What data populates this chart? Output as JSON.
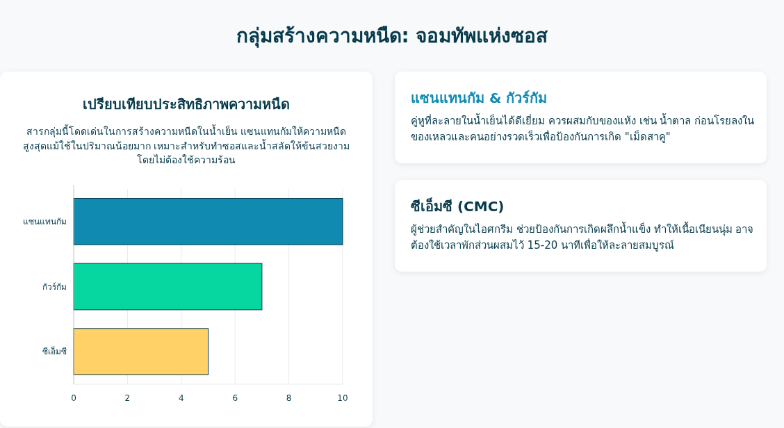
{
  "chart_data": [
    {
      "type": "bar",
      "orientation": "horizontal",
      "title": "เปรียบเทียบประสิทธิภาพความหนืด",
      "subtitle": "สารกลุ่มนี้โดดเด่นในการสร้างความหนืดในน้ำเย็น แซนแทนกัมให้ความหนืดสูงสุดแม้ใช้ในปริมาณน้อยมาก เหมาะสำหรับทำซอสและน้ำสลัดให้ข้นสวยงามโดยไม่ต้องใช้ความร้อน",
      "annotations": [
        "กลุ่มสร้างความหนืด: จอมทัพแห่งซอส"
      ],
      "categories": [
        "แซนแทนกัม",
        "กัวร์กัม",
        "ซีเอ็มซี"
      ],
      "values": [
        10,
        7,
        5
      ],
      "colors": [
        "#118ab2",
        "#06d6a0",
        "#ffd166"
      ],
      "xlim": [
        0,
        10
      ],
      "xticks": [
        0,
        2,
        4,
        6,
        8,
        10
      ],
      "grid": "x"
    },
    {
      "type": "other",
      "title": "แซนแทนกัม & กัวร์กัม",
      "subtitle": "คู่หูที่ละลายในน้ำเย็นได้ดีเยี่ยม ควรผสมกับของแห้ง เช่น น้ำตาล ก่อนโรยลงในของเหลวและคนอย่างรวดเร็วเพื่อป้องกันการเกิด \"เม็ดสาคู\""
    },
    {
      "type": "other",
      "title": "ซีเอ็มซี (CMC)",
      "subtitle": "ผู้ช่วยสำคัญในไอศกรีม ช่วยป้องกันการเกิดผลึกน้ำแข็ง ทำให้เนื้อเนียนนุ่ม อาจต้องใช้เวลาพักส่วนผสมไว้ 15-20 นาทีเพื่อให้ละลายสมบูรณ์"
    }
  ]
}
